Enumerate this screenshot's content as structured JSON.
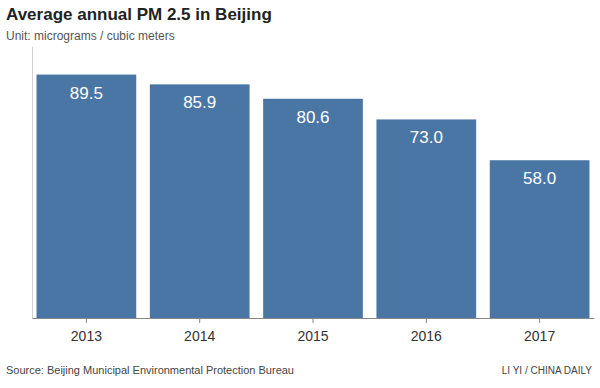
{
  "chart_data": {
    "type": "bar",
    "title": "Average annual PM 2.5 in Beijing",
    "subtitle": "Unit: micrograms / cubic meters",
    "categories": [
      "2013",
      "2014",
      "2015",
      "2016",
      "2017"
    ],
    "values": [
      89.5,
      85.9,
      80.6,
      73.0,
      58.0
    ],
    "value_labels": [
      "89.5",
      "85.9",
      "80.6",
      "73.0",
      "58.0"
    ],
    "color": "#4a76a6",
    "ylim": [
      0,
      100
    ],
    "yticks": [],
    "grid": false,
    "data_labels": true,
    "tick_labels": "x",
    "source": "Source: Beijing Municipal Environmental Protection Bureau",
    "credit": "LI YI / CHINA DAILY"
  }
}
